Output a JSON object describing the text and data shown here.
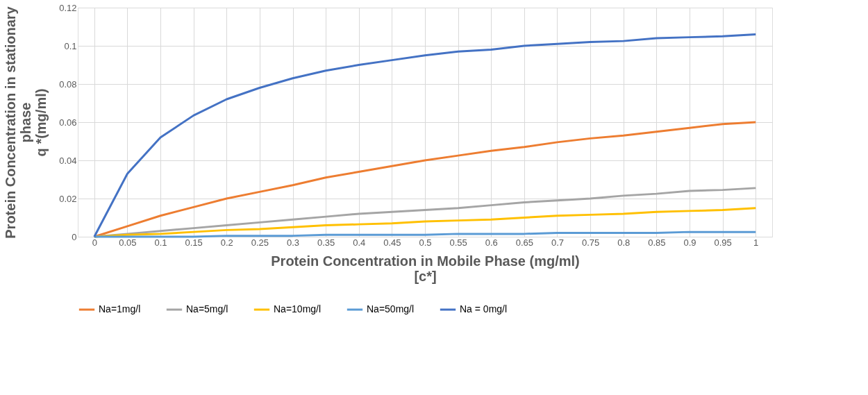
{
  "chart_data": {
    "type": "line",
    "xlabel": "Protein Concentration in Mobile Phase (mg/ml)\n[c*]",
    "ylabel": "Protein Concentration in stationary\nphase\nq *(mg/ml)",
    "categories": [
      "0",
      "0.05",
      "0.1",
      "0.15",
      "0.2",
      "0.25",
      "0.3",
      "0.35",
      "0.4",
      "0.45",
      "0.5",
      "0.55",
      "0.6",
      "0.65",
      "0.7",
      "0.75",
      "0.8",
      "0.85",
      "0.9",
      "0.95",
      "1"
    ],
    "series": [
      {
        "name": "Na=1mg/l",
        "color": "#ed7d31",
        "values": [
          0,
          0.0055,
          0.011,
          0.0155,
          0.02,
          0.0235,
          0.027,
          0.031,
          0.034,
          0.037,
          0.04,
          0.0425,
          0.045,
          0.047,
          0.0495,
          0.0515,
          0.053,
          0.055,
          0.057,
          0.059,
          0.06
        ]
      },
      {
        "name": "Na=5mg/l",
        "color": "#a5a5a5",
        "values": [
          0,
          0.0015,
          0.003,
          0.0045,
          0.006,
          0.0075,
          0.009,
          0.0105,
          0.012,
          0.013,
          0.014,
          0.015,
          0.0165,
          0.018,
          0.019,
          0.02,
          0.0215,
          0.0225,
          0.024,
          0.0245,
          0.0255
        ]
      },
      {
        "name": "Na=10mg/l",
        "color": "#ffc000",
        "values": [
          0,
          0.001,
          0.0015,
          0.0025,
          0.0035,
          0.004,
          0.005,
          0.006,
          0.0065,
          0.007,
          0.008,
          0.0085,
          0.009,
          0.01,
          0.011,
          0.0115,
          0.012,
          0.013,
          0.0135,
          0.014,
          0.015
        ]
      },
      {
        "name": "Na=50mg/l",
        "color": "#5b9bd5",
        "values": [
          0,
          0,
          0,
          0,
          0.0005,
          0.0005,
          0.0005,
          0.001,
          0.001,
          0.001,
          0.001,
          0.0015,
          0.0015,
          0.0015,
          0.002,
          0.002,
          0.002,
          0.002,
          0.0025,
          0.0025,
          0.0025
        ]
      },
      {
        "name": "Na = 0mg/l",
        "color": "#4472c4",
        "values": [
          0,
          0.033,
          0.052,
          0.0635,
          0.072,
          0.078,
          0.083,
          0.087,
          0.09,
          0.0925,
          0.095,
          0.097,
          0.098,
          0.1,
          0.101,
          0.102,
          0.1025,
          0.104,
          0.1045,
          0.105,
          0.106
        ]
      }
    ],
    "ylim": [
      0,
      0.12
    ],
    "yticks": [
      0,
      0.02,
      0.04,
      0.06,
      0.08,
      0.1,
      0.12
    ],
    "grid": true,
    "legend": "bottom",
    "marker": "none",
    "line_style": "solid"
  }
}
